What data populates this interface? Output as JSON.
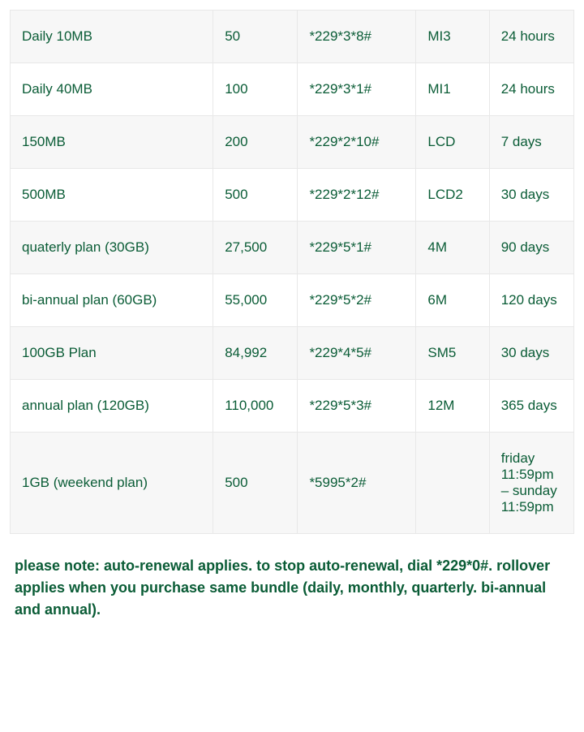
{
  "table": {
    "columns": [
      {
        "key": "plan",
        "class": "col-plan"
      },
      {
        "key": "price",
        "class": "col-price"
      },
      {
        "key": "ussd",
        "class": "col-ussd"
      },
      {
        "key": "sms",
        "class": "col-sms"
      },
      {
        "key": "validity",
        "class": "col-validity"
      }
    ],
    "rows": [
      {
        "plan": "Daily 10MB",
        "price": "50",
        "ussd": "*229*3*8#",
        "sms": "MI3",
        "validity": "24 hours"
      },
      {
        "plan": "Daily 40MB",
        "price": "100",
        "ussd": "*229*3*1#",
        "sms": "MI1",
        "validity": "24 hours"
      },
      {
        "plan": "150MB",
        "price": "200",
        "ussd": "*229*2*10#",
        "sms": "LCD",
        "validity": "7 days"
      },
      {
        "plan": "500MB",
        "price": "500",
        "ussd": "*229*2*12#",
        "sms": "LCD2",
        "validity": "30 days"
      },
      {
        "plan": "quaterly plan (30GB)",
        "price": "27,500",
        "ussd": "*229*5*1#",
        "sms": "4M",
        "validity": "90 days"
      },
      {
        "plan": "bi-annual plan (60GB)",
        "price": "55,000",
        "ussd": "*229*5*2#",
        "sms": "6M",
        "validity": "120 days"
      },
      {
        "plan": "100GB Plan",
        "price": "84,992",
        "ussd": "*229*4*5#",
        "sms": "SM5",
        "validity": "30 days"
      },
      {
        "plan": "annual plan (120GB)",
        "price": "110,000",
        "ussd": "*229*5*3#",
        "sms": "12M",
        "validity": "365 days"
      },
      {
        "plan": "1GB (weekend plan)",
        "price": "500",
        "ussd": "*5995*2#",
        "sms": "",
        "validity": "friday 11:59pm – sunday 11:59pm"
      }
    ]
  },
  "note": "please note: auto-renewal applies. to stop auto-renewal, dial *229*0#. rollover applies when you purchase same bundle (daily, monthly, quarterly. bi-annual and annual).",
  "styles": {
    "text_color": "#0a5c36",
    "border_color": "#e8e8e8",
    "odd_row_bg": "#f7f7f7",
    "even_row_bg": "#ffffff",
    "cell_fontsize": 17,
    "note_fontsize": 18,
    "note_fontweight": 700
  }
}
